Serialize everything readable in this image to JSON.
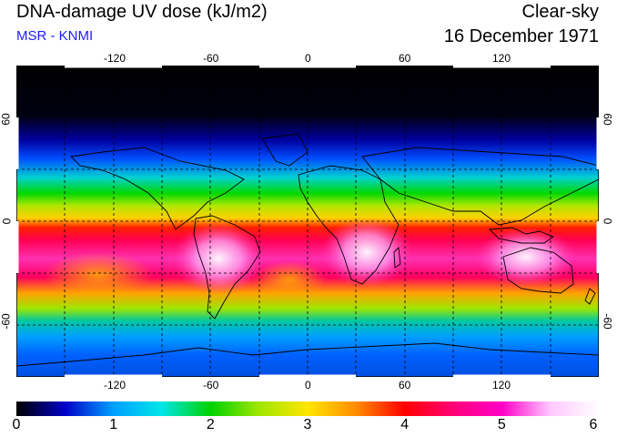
{
  "header": {
    "title": "DNA-damage UV dose (kJ/m2)",
    "subtitle": "MSR - KNMI",
    "condition": "Clear-sky",
    "date": "16 December 1971"
  },
  "map": {
    "x_ticks": [
      "-120",
      "-60",
      "0",
      "60",
      "120"
    ],
    "y_ticks": [
      "60",
      "0",
      "-60"
    ],
    "lon_range": [
      -180,
      180
    ],
    "lat_range": [
      -90,
      90
    ]
  },
  "colorbar": {
    "labels": [
      "0",
      "1",
      "2",
      "3",
      "4",
      "5",
      "6"
    ],
    "min": 0,
    "max": 6,
    "colors": [
      "#000000",
      "#0000c8",
      "#00a0ff",
      "#00e6e6",
      "#00d200",
      "#a0e600",
      "#ffe600",
      "#ff8c00",
      "#ff0000",
      "#ff0078",
      "#ff00c8",
      "#ffc8ff",
      "#ffffff"
    ]
  }
}
